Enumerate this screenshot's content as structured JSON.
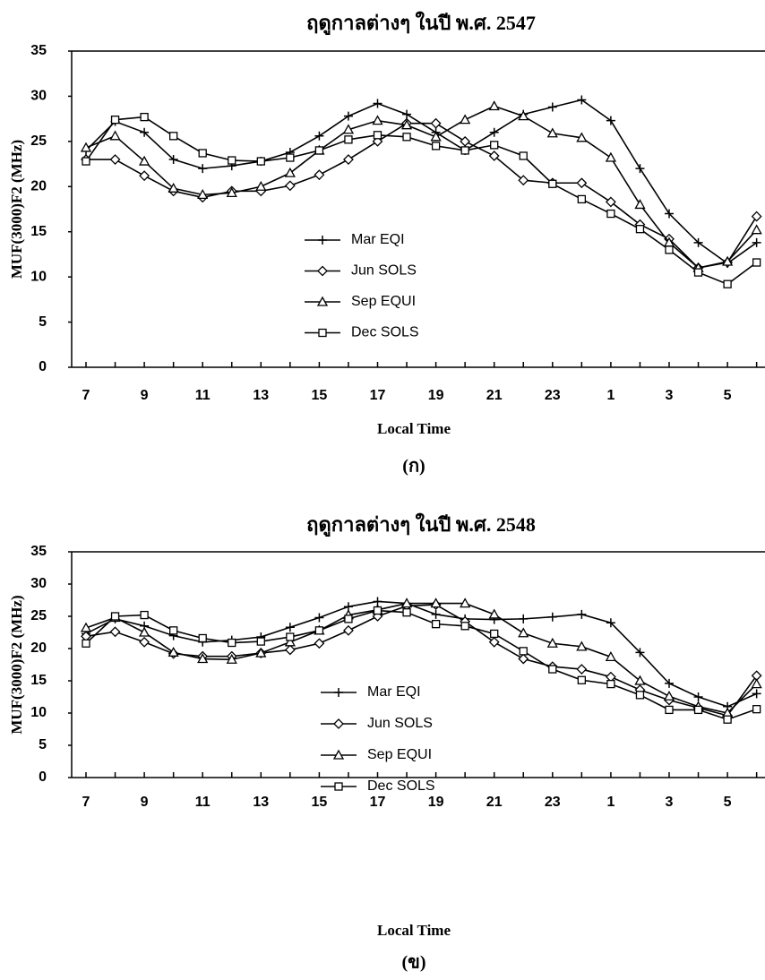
{
  "chart_data": [
    {
      "type": "line",
      "title": "ฤดูกาลต่างๆ ในปี พ.ศ. 2547",
      "caption": "(ก)",
      "x_label": "Local Time",
      "y_label": "MUF(3000)F2 (MHz)",
      "categories": [
        "7",
        null,
        "9",
        null,
        "11",
        null,
        "13",
        null,
        "15",
        null,
        "17",
        null,
        "19",
        null,
        "21",
        null,
        "23",
        null,
        "1",
        null,
        "3",
        null,
        "5",
        null
      ],
      "ylim": [
        0,
        35
      ],
      "yticks": [
        0,
        5,
        10,
        15,
        20,
        25,
        30,
        35
      ],
      "series": [
        {
          "name": "Mar EQI",
          "color": "#000000",
          "marker": "plus",
          "values": [
            24,
            27.2,
            26,
            23,
            22,
            22.3,
            22.8,
            23.8,
            25.6,
            27.8,
            29.2,
            28,
            26,
            24,
            26,
            28,
            28.8,
            29.6,
            27.3,
            22,
            17,
            13.8,
            11.5,
            13.8
          ]
        },
        {
          "name": "Jun SOLS",
          "color": "#000000",
          "marker": "diamond",
          "values": [
            23,
            23,
            21.2,
            19.5,
            18.8,
            19.5,
            19.5,
            20.1,
            21.3,
            23,
            25,
            27,
            27,
            25,
            23.4,
            20.7,
            20.4,
            20.4,
            18.3,
            15.8,
            14.2,
            11,
            11.6,
            16.7
          ]
        },
        {
          "name": "Sep EQUI",
          "color": "#000000",
          "marker": "triangle",
          "values": [
            24.3,
            25.6,
            22.8,
            19.8,
            19.1,
            19.3,
            20,
            21.5,
            24,
            26.3,
            27.3,
            26.8,
            25.5,
            27.4,
            28.9,
            27.8,
            25.9,
            25.4,
            23.2,
            18,
            13.8,
            11,
            11.7,
            15.2
          ]
        },
        {
          "name": "Dec SOLS",
          "color": "#000000",
          "marker": "square",
          "values": [
            22.8,
            27.4,
            27.7,
            25.6,
            23.7,
            22.9,
            22.8,
            23.2,
            24,
            25.2,
            25.7,
            25.5,
            24.5,
            24,
            24.6,
            23.4,
            20.3,
            18.6,
            17,
            15.3,
            13,
            10.5,
            9.2,
            11.6
          ]
        }
      ]
    },
    {
      "type": "line",
      "title": "ฤดูกาลต่างๆ ในปี พ.ศ. 2548",
      "caption": "(ข)",
      "x_label": "Local Time",
      "y_label": "MUF(3000)F2 (MHz)",
      "categories": [
        "7",
        null,
        "9",
        null,
        "11",
        null,
        "13",
        null,
        "15",
        null,
        "17",
        null,
        "19",
        null,
        "21",
        null,
        "23",
        null,
        "1",
        null,
        "3",
        null,
        "5",
        null
      ],
      "ylim": [
        0,
        35
      ],
      "yticks": [
        0,
        5,
        10,
        15,
        20,
        25,
        30,
        35
      ],
      "series": [
        {
          "name": "Mar EQI",
          "color": "#000000",
          "marker": "plus",
          "values": [
            22.3,
            24.6,
            23.5,
            22,
            21,
            21.3,
            21.8,
            23.3,
            24.8,
            26.5,
            27.3,
            27,
            25.3,
            24.6,
            24.5,
            24.6,
            24.9,
            25.3,
            24,
            19.4,
            14.6,
            12.5,
            11,
            13
          ]
        },
        {
          "name": "Jun SOLS",
          "color": "#000000",
          "marker": "diamond",
          "values": [
            21.9,
            22.6,
            21,
            19.2,
            18.8,
            18.8,
            19.3,
            19.8,
            20.8,
            22.8,
            25,
            26.6,
            26.8,
            24.2,
            21,
            18.4,
            17.2,
            16.8,
            15.6,
            13.6,
            12,
            10.8,
            9.6,
            15.8
          ]
        },
        {
          "name": "Sep EQUI",
          "color": "#000000",
          "marker": "triangle",
          "values": [
            23.2,
            24.8,
            22.5,
            19.4,
            18.4,
            18.3,
            19.3,
            21,
            22.8,
            25.2,
            26,
            27,
            27,
            27,
            25.3,
            22.4,
            20.8,
            20.3,
            18.7,
            15,
            12.6,
            11,
            10,
            14.5
          ]
        },
        {
          "name": "Dec SOLS",
          "color": "#000000",
          "marker": "square",
          "values": [
            20.8,
            25,
            25.2,
            22.8,
            21.6,
            20.9,
            21.1,
            21.8,
            22.8,
            24.6,
            25.9,
            25.6,
            23.8,
            23.5,
            22.3,
            19.6,
            16.8,
            15.1,
            14.5,
            12.8,
            10.5,
            10.5,
            9,
            10.6
          ]
        }
      ]
    }
  ]
}
